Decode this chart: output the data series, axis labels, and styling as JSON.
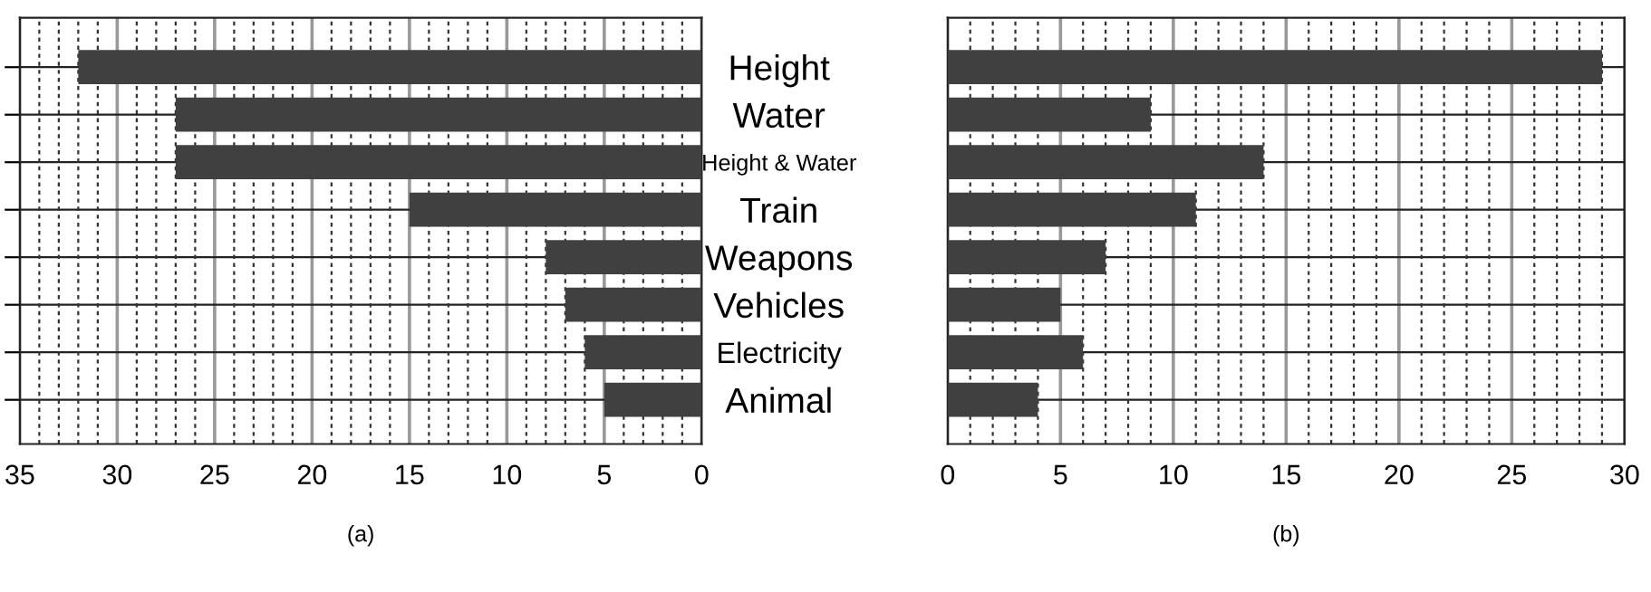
{
  "chart_data": [
    {
      "type": "bar",
      "orientation": "horizontal",
      "xlabel": "(a)",
      "categories": [
        "Height",
        "Water",
        "Height & Water",
        "Train",
        "Weapons",
        "Vehicles",
        "Electricity",
        "Animal"
      ],
      "values": [
        32,
        27,
        27,
        15,
        8,
        7,
        6,
        5
      ],
      "color": "#404040",
      "xlim": [
        35,
        0
      ],
      "xticks": [
        35,
        30,
        25,
        20,
        15,
        10,
        5,
        0
      ],
      "grid": true,
      "tick_labels": "x"
    },
    {
      "type": "bar",
      "orientation": "horizontal",
      "xlabel": "(b)",
      "categories": [
        "Height",
        "Water",
        "Height & Water",
        "Train",
        "Weapons",
        "Vehicles",
        "Electricity",
        "Animal"
      ],
      "values": [
        29,
        9,
        14,
        11,
        7,
        5,
        6,
        4
      ],
      "color": "#404040",
      "xlim": [
        0,
        30
      ],
      "xticks": [
        0,
        5,
        10,
        15,
        20,
        25,
        30
      ],
      "grid": true
    }
  ]
}
